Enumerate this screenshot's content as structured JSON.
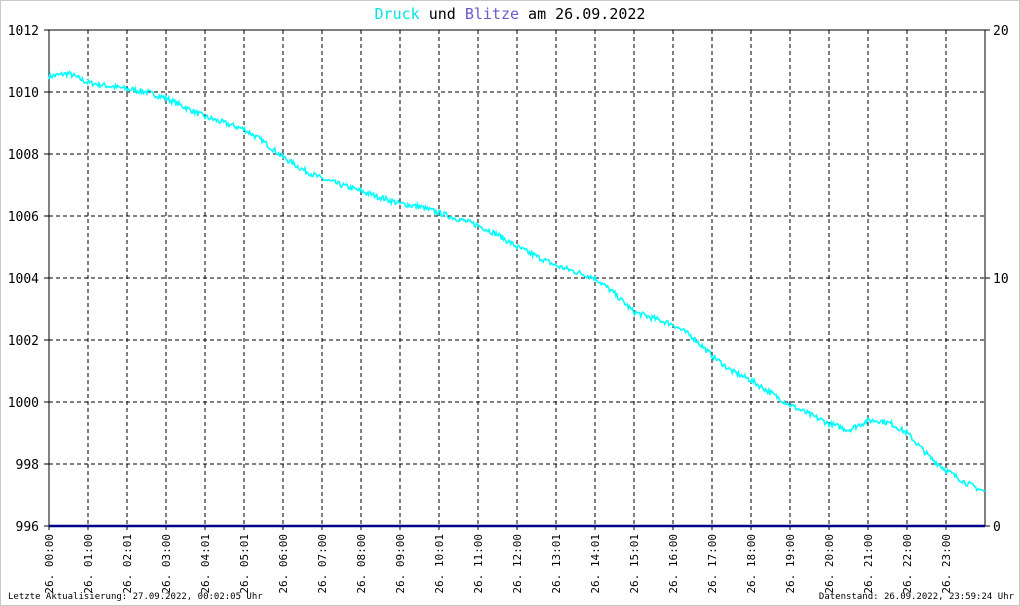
{
  "header": {
    "title_part1": "Druck",
    "title_part2": " und ",
    "title_part3": "Blitze",
    "title_part4": " am 26.09.2022"
  },
  "footer": {
    "left": "Letzte Aktualisierung: 27.09.2022, 00:02:05 Uhr",
    "right": "Datenstand: 26.09.2022, 23:59:24 Uhr"
  },
  "colors": {
    "pressure": "#00ffff",
    "lightning": "#6a5acd",
    "baseline": "#00008b",
    "title_pressure": "#00e5e5",
    "title_lightning": "#6a5acd"
  },
  "chart_data": {
    "type": "line",
    "title": "Druck und Blitze am 26.09.2022",
    "x_tick_labels": [
      "26. 00:00",
      "26. 01:00",
      "26. 02:01",
      "26. 03:00",
      "26. 04:01",
      "26. 05:01",
      "26. 06:00",
      "26. 07:00",
      "26. 08:00",
      "26. 09:00",
      "26. 10:01",
      "26. 11:00",
      "26. 12:00",
      "26. 13:01",
      "26. 14:01",
      "26. 15:01",
      "26. 16:00",
      "26. 17:00",
      "26. 18:00",
      "26. 19:00",
      "26. 20:00",
      "26. 21:00",
      "26. 22:00",
      "26. 23:00"
    ],
    "y_left_ticks": [
      "1012",
      "1010",
      "1008",
      "1006",
      "1004",
      "1002",
      "1000",
      "998",
      "996"
    ],
    "y_right_ticks": [
      "20",
      "10",
      "0"
    ],
    "ylim_left": [
      996,
      1012
    ],
    "ylim_right": [
      0,
      20
    ],
    "xlim_hours": [
      0,
      24
    ],
    "grid": true,
    "series": [
      {
        "name": "Druck",
        "axis": "left",
        "x_hours": [
          0,
          0.5,
          1,
          1.5,
          2,
          2.5,
          3,
          3.5,
          4,
          4.5,
          5,
          5.5,
          6,
          6.5,
          7,
          7.5,
          8,
          8.5,
          9,
          9.5,
          10,
          10.5,
          11,
          11.5,
          12,
          12.5,
          13,
          13.5,
          14,
          14.5,
          15,
          15.5,
          16,
          16.5,
          17,
          17.5,
          18,
          18.5,
          19,
          19.5,
          20,
          20.5,
          21,
          21.3,
          21.6,
          22,
          22.3,
          22.6,
          23,
          23.5,
          24
        ],
        "values": [
          1010.5,
          1010.6,
          1010.3,
          1010.2,
          1010.1,
          1010.0,
          1009.8,
          1009.5,
          1009.2,
          1009.0,
          1008.8,
          1008.4,
          1007.9,
          1007.5,
          1007.2,
          1007.0,
          1006.8,
          1006.6,
          1006.4,
          1006.3,
          1006.1,
          1005.9,
          1005.7,
          1005.4,
          1005.0,
          1004.7,
          1004.4,
          1004.2,
          1004.0,
          1003.5,
          1002.9,
          1002.7,
          1002.5,
          1002.1,
          1001.5,
          1001.0,
          1000.7,
          1000.3,
          999.9,
          999.6,
          999.3,
          999.1,
          999.4,
          999.4,
          999.3,
          999.0,
          998.6,
          998.2,
          997.8,
          997.4,
          997.1
        ]
      },
      {
        "name": "Blitze",
        "axis": "right",
        "x_hours": [
          0,
          24
        ],
        "values": [
          0,
          0
        ]
      }
    ]
  }
}
